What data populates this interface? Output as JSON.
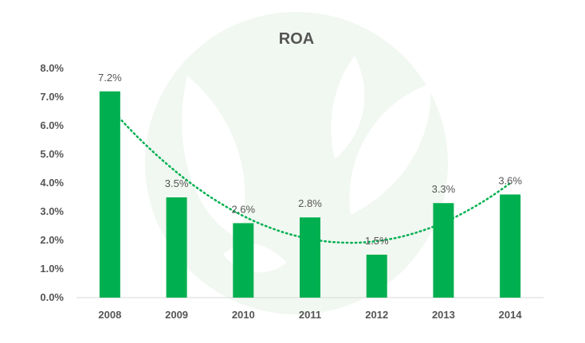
{
  "chart_data": {
    "type": "bar",
    "title": "ROA",
    "xlabel": "",
    "ylabel": "",
    "categories": [
      "2008",
      "2009",
      "2010",
      "2011",
      "2012",
      "2013",
      "2014"
    ],
    "values": [
      7.2,
      3.5,
      2.6,
      2.8,
      1.5,
      3.3,
      3.6
    ],
    "data_labels": [
      "7.2%",
      "3.5%",
      "2.6%",
      "2.8%",
      "1.5%",
      "3.3%",
      "3.6%"
    ],
    "y_ticks": [
      0,
      1,
      2,
      3,
      4,
      5,
      6,
      7,
      8
    ],
    "y_tick_labels": [
      "0.0%",
      "1.0%",
      "2.0%",
      "3.0%",
      "4.0%",
      "5.0%",
      "6.0%",
      "7.0%",
      "8.0%"
    ],
    "ylim": [
      0,
      8
    ],
    "grid": false,
    "legend": "none",
    "trendline": {
      "type": "polynomial",
      "style": "dotted"
    },
    "colors": {
      "bar": "#00b050",
      "trendline": "#00b050",
      "text": "#555555",
      "axis": "#d9d9d9",
      "watermark": "#eef6ee"
    }
  }
}
